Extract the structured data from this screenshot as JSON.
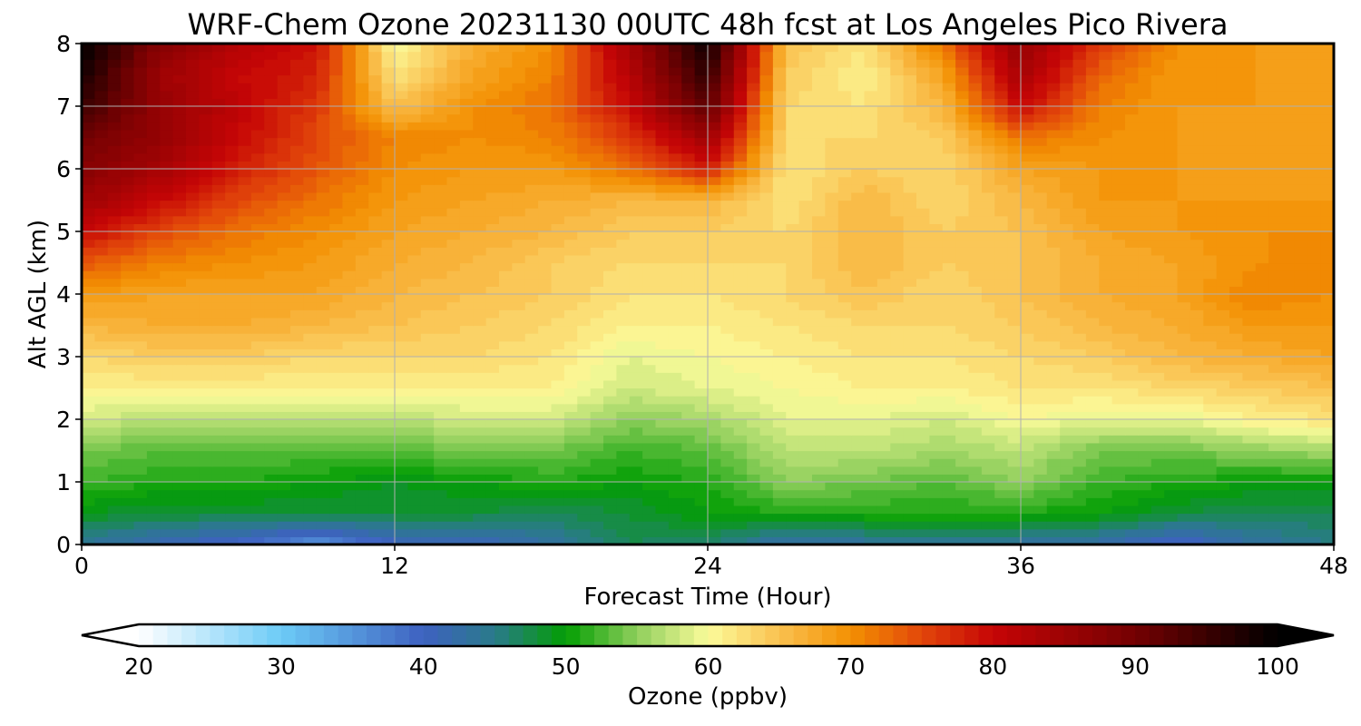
{
  "chart_data": {
    "type": "heatmap",
    "title": "WRF-Chem Ozone  20231130 00UTC 48h fcst at Los Angeles Pico Rivera",
    "xlabel": "Forecast Time (Hour)",
    "ylabel": "Alt AGL (km)",
    "xlim": [
      0,
      48
    ],
    "ylim": [
      0,
      8
    ],
    "x_ticks": [
      0,
      12,
      24,
      36,
      48
    ],
    "y_ticks": [
      0,
      1,
      2,
      3,
      4,
      5,
      6,
      7,
      8
    ],
    "grid": true,
    "x": [
      0,
      3,
      6,
      9,
      12,
      15,
      18,
      21,
      24,
      27,
      30,
      33,
      36,
      39,
      42,
      45,
      48
    ],
    "y": [
      0,
      0.5,
      1,
      1.5,
      2,
      2.5,
      3,
      3.5,
      4,
      4.5,
      5,
      5.5,
      6,
      6.5,
      7,
      7.5,
      8
    ],
    "z": [
      [
        44,
        41,
        39,
        35,
        40,
        40,
        43,
        47,
        46,
        42,
        43,
        43,
        43,
        42,
        39,
        43,
        45
      ],
      [
        49,
        48,
        48,
        48,
        48,
        48,
        47,
        48,
        50,
        51,
        51,
        51,
        51,
        50,
        48,
        47,
        47
      ],
      [
        52,
        51,
        51,
        50,
        49,
        50,
        51,
        50,
        51,
        55,
        54,
        53,
        55,
        52,
        51,
        50,
        50
      ],
      [
        54,
        53,
        53,
        53,
        53,
        54,
        54,
        52,
        53,
        57,
        57,
        56,
        57,
        54,
        54,
        55,
        56
      ],
      [
        58,
        57,
        57,
        57,
        57,
        58,
        58,
        55,
        56,
        59,
        59,
        58,
        60,
        59,
        59,
        61,
        62
      ],
      [
        61,
        61,
        61,
        61,
        61,
        61,
        61,
        58,
        59,
        60,
        61,
        61,
        62,
        62,
        63,
        64,
        65
      ],
      [
        63,
        64,
        64,
        63,
        63,
        63,
        62,
        59,
        60,
        61,
        62,
        62,
        63,
        64,
        66,
        67,
        68
      ],
      [
        66,
        67,
        67,
        66,
        65,
        64,
        63,
        61,
        61,
        62,
        63,
        63,
        64,
        66,
        67,
        69,
        69
      ],
      [
        69,
        68,
        68,
        68,
        66,
        65,
        64,
        62,
        62,
        63,
        65,
        63,
        65,
        67,
        68,
        71,
        70
      ],
      [
        74,
        71,
        70,
        69,
        67,
        66,
        64,
        63,
        63,
        63,
        66,
        64,
        65,
        67,
        68,
        70,
        70
      ],
      [
        80,
        75,
        72,
        70,
        68,
        67,
        66,
        64,
        64,
        63,
        66,
        64,
        65,
        68,
        69,
        70,
        70
      ],
      [
        85,
        80,
        75,
        72,
        69,
        68,
        67,
        66,
        66,
        62,
        66,
        63,
        66,
        69,
        69,
        69,
        69
      ],
      [
        88,
        84,
        78,
        74,
        70,
        69,
        69,
        72,
        78,
        62,
        64,
        63,
        68,
        69,
        69,
        68,
        68
      ],
      [
        90,
        86,
        80,
        75,
        71,
        70,
        71,
        76,
        85,
        63,
        63,
        64,
        72,
        70,
        69,
        68,
        68
      ],
      [
        95,
        86,
        81,
        76,
        65,
        70,
        72,
        80,
        92,
        63,
        62,
        66,
        80,
        71,
        69,
        69,
        68
      ],
      [
        98,
        85,
        80,
        78,
        62,
        68,
        71,
        82,
        96,
        64,
        61,
        68,
        84,
        73,
        69,
        69,
        68
      ],
      [
        100,
        88,
        82,
        79,
        60,
        67,
        70,
        84,
        99,
        65,
        62,
        72,
        86,
        76,
        70,
        69,
        69
      ]
    ],
    "colorbar": {
      "label": "Ozone  (ppbv)",
      "min": 20,
      "max": 100,
      "step": 1,
      "extend": "both",
      "ticks": [
        20,
        30,
        40,
        50,
        60,
        70,
        80,
        90,
        100
      ],
      "colors": [
        {
          "v": 20,
          "c": "#ffffff"
        },
        {
          "v": 30,
          "c": "#6ccbf7"
        },
        {
          "v": 40,
          "c": "#3e61c0"
        },
        {
          "v": 45,
          "c": "#2a7a8a"
        },
        {
          "v": 50,
          "c": "#039e03"
        },
        {
          "v": 55,
          "c": "#8fcf5c"
        },
        {
          "v": 60,
          "c": "#fbfb9a"
        },
        {
          "v": 65,
          "c": "#fac150"
        },
        {
          "v": 70,
          "c": "#f39002"
        },
        {
          "v": 75,
          "c": "#e2470a"
        },
        {
          "v": 80,
          "c": "#c60506"
        },
        {
          "v": 90,
          "c": "#740102"
        },
        {
          "v": 100,
          "c": "#000000"
        }
      ]
    }
  }
}
